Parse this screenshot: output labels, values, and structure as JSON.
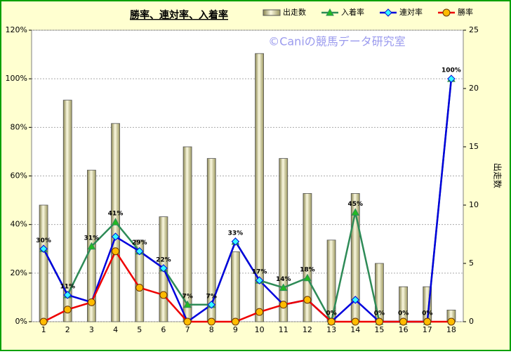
{
  "chart_data": {
    "type": "bar-line",
    "title": "勝率、連対率、入着率",
    "annotation": "©Caniの競馬データ研究室",
    "y2label": "出走数",
    "categories": [
      "1",
      "2",
      "3",
      "4",
      "5",
      "6",
      "7",
      "8",
      "9",
      "10",
      "11",
      "12",
      "13",
      "14",
      "15",
      "16",
      "17",
      "18"
    ],
    "ylim": [
      0,
      120
    ],
    "yticks": [
      {
        "value": 0,
        "label": "0%"
      },
      {
        "value": 20,
        "label": "20%"
      },
      {
        "value": 40,
        "label": "40%"
      },
      {
        "value": 60,
        "label": "60%"
      },
      {
        "value": 80,
        "label": "80%"
      },
      {
        "value": 100,
        "label": "100%"
      },
      {
        "value": 120,
        "label": "120%"
      }
    ],
    "y2lim": [
      0,
      25
    ],
    "y2ticks": [
      0,
      5,
      10,
      15,
      20,
      25
    ],
    "grid": true,
    "legend": "top-right",
    "series": [
      {
        "name": "出走数",
        "kind": "bar",
        "axis": "y2",
        "color": "#ece8b8",
        "values": [
          10,
          19,
          13,
          17,
          7,
          9,
          15,
          14,
          6,
          23,
          14,
          11,
          7,
          11,
          5,
          3,
          3,
          1
        ]
      },
      {
        "name": "入着率",
        "kind": "line",
        "marker": "triangle",
        "color": "#2e8b57",
        "marker_color": "#22bb22",
        "values": [
          30,
          11,
          31,
          41,
          29,
          22,
          7,
          7,
          33,
          17,
          14,
          18,
          0,
          45,
          0,
          0,
          0,
          100
        ],
        "value_labels": [
          "30%",
          "11%",
          "31%",
          "41%",
          "29%",
          "22%",
          "7%",
          "7%",
          "33%",
          "17%",
          "14%",
          "18%",
          "0%",
          "45%",
          "0%",
          "0%",
          "0%",
          "100%"
        ]
      },
      {
        "name": "連対率",
        "kind": "line",
        "marker": "diamond",
        "color": "#0000dd",
        "marker_color": "#33ffff",
        "values": [
          30,
          11,
          8,
          35,
          29,
          22,
          0,
          7,
          33,
          17,
          7,
          9,
          0,
          9,
          0,
          0,
          0,
          100
        ]
      },
      {
        "name": "勝率",
        "kind": "line",
        "marker": "circle",
        "color": "#ee0000",
        "marker_color": "#ffbb00",
        "values": [
          0,
          5,
          8,
          29,
          14,
          11,
          0,
          0,
          0,
          4,
          7,
          9,
          0,
          0,
          0,
          0,
          0,
          0
        ]
      }
    ]
  }
}
